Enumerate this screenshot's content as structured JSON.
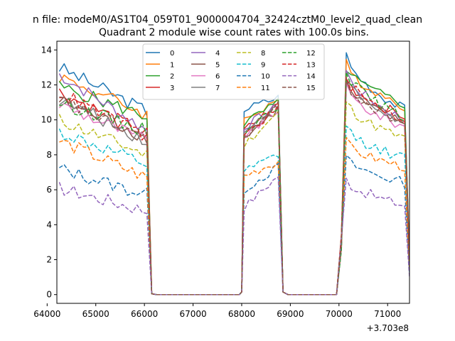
{
  "chart_data": {
    "type": "line",
    "suptitle": "n file: modeM0/AS1T04_059T01_9000004704_32424cztM0_level2_quad_clean",
    "title": "Quadrant 2 module wise count rates with 100.0s bins.",
    "xlabel": "",
    "ylabel": "",
    "x_offset_label": "+3.703e8",
    "xlim": [
      64200,
      71450
    ],
    "ylim": [
      -0.5,
      14.5
    ],
    "x_ticks": [
      64000,
      65000,
      66000,
      67000,
      68000,
      69000,
      70000,
      71000
    ],
    "x_tick_labels": [
      "64000",
      "65000",
      "66000",
      "67000",
      "68000",
      "69000",
      "70000",
      "71000"
    ],
    "y_ticks": [
      0,
      2,
      4,
      6,
      8,
      10,
      12,
      14
    ],
    "y_tick_labels": [
      "0",
      "2",
      "4",
      "6",
      "8",
      "10",
      "12",
      "14"
    ],
    "legend_position": "upper-center",
    "segments": {
      "seg1_start": 64250,
      "seg1_end": 66150,
      "gap1_end": 68000,
      "seg2_start": 68050,
      "seg2_end": 68750,
      "gap2_end": 70000,
      "seg3_start": 70150,
      "seg3_end": 71450
    },
    "series": [
      {
        "name": "0",
        "color": "#1f77b4",
        "dash": "solid",
        "level1": 13.0,
        "end1": 10.5,
        "level2": 10.6,
        "peak2": 11.3,
        "peak3": 13.7,
        "end3": 10.6
      },
      {
        "name": "1",
        "color": "#ff7f0e",
        "dash": "solid",
        "level1": 12.5,
        "end1": 10.3,
        "level2": 10.0,
        "peak2": 11.2,
        "peak3": 13.2,
        "end3": 10.8
      },
      {
        "name": "2",
        "color": "#2ca02c",
        "dash": "solid",
        "level1": 11.9,
        "end1": 10.2,
        "level2": 9.8,
        "peak2": 11.0,
        "peak3": 13.0,
        "end3": 10.9
      },
      {
        "name": "3",
        "color": "#d62728",
        "dash": "solid",
        "level1": 11.6,
        "end1": 9.2,
        "level2": 9.4,
        "peak2": 10.9,
        "peak3": 12.4,
        "end3": 10.2
      },
      {
        "name": "4",
        "color": "#9467bd",
        "dash": "solid",
        "level1": 12.6,
        "end1": 9.4,
        "level2": 9.6,
        "peak2": 10.8,
        "peak3": 12.8,
        "end3": 10.0
      },
      {
        "name": "5",
        "color": "#8c564b",
        "dash": "solid",
        "level1": 11.1,
        "end1": 9.0,
        "level2": 9.0,
        "peak2": 10.6,
        "peak3": 12.0,
        "end3": 9.8
      },
      {
        "name": "6",
        "color": "#e377c2",
        "dash": "solid",
        "level1": 10.9,
        "end1": 8.8,
        "level2": 9.1,
        "peak2": 10.5,
        "peak3": 11.8,
        "end3": 9.6
      },
      {
        "name": "7",
        "color": "#7f7f7f",
        "dash": "solid",
        "level1": 11.2,
        "end1": 8.8,
        "level2": 9.2,
        "peak2": 11.0,
        "peak3": 12.4,
        "end3": 9.8
      },
      {
        "name": "8",
        "color": "#bcbd22",
        "dash": "dashed",
        "level1": 10.0,
        "end1": 8.0,
        "level2": 8.6,
        "peak2": 10.4,
        "peak3": 11.1,
        "end3": 8.9
      },
      {
        "name": "9",
        "color": "#17becf",
        "dash": "dashed",
        "level1": 9.3,
        "end1": 7.4,
        "level2": 7.0,
        "peak2": 8.0,
        "peak3": 9.6,
        "end3": 7.8
      },
      {
        "name": "10",
        "color": "#1f77b4",
        "dash": "dashed",
        "level1": 7.2,
        "end1": 5.7,
        "level2": 6.0,
        "peak2": 7.3,
        "peak3": 7.8,
        "end3": 6.4
      },
      {
        "name": "11",
        "color": "#ff7f0e",
        "dash": "dashed",
        "level1": 8.8,
        "end1": 6.7,
        "level2": 6.8,
        "peak2": 7.6,
        "peak3": 8.7,
        "end3": 7.3
      },
      {
        "name": "12",
        "color": "#2ca02c",
        "dash": "dashed",
        "level1": 11.0,
        "end1": 9.4,
        "level2": 9.3,
        "peak2": 10.8,
        "peak3": 12.9,
        "end3": 10.1
      },
      {
        "name": "13",
        "color": "#d62728",
        "dash": "dashed",
        "level1": 11.6,
        "end1": 9.0,
        "level2": 9.1,
        "peak2": 10.7,
        "peak3": 12.5,
        "end3": 10.0
      },
      {
        "name": "14",
        "color": "#9467bd",
        "dash": "dashed",
        "level1": 6.1,
        "end1": 4.8,
        "level2": 5.0,
        "peak2": 6.8,
        "peak3": 6.6,
        "end3": 5.1
      },
      {
        "name": "15",
        "color": "#8c564b",
        "dash": "dashed",
        "level1": 11.1,
        "end1": 9.0,
        "level2": 9.0,
        "peak2": 10.8,
        "peak3": 12.2,
        "end3": 9.8
      }
    ]
  }
}
